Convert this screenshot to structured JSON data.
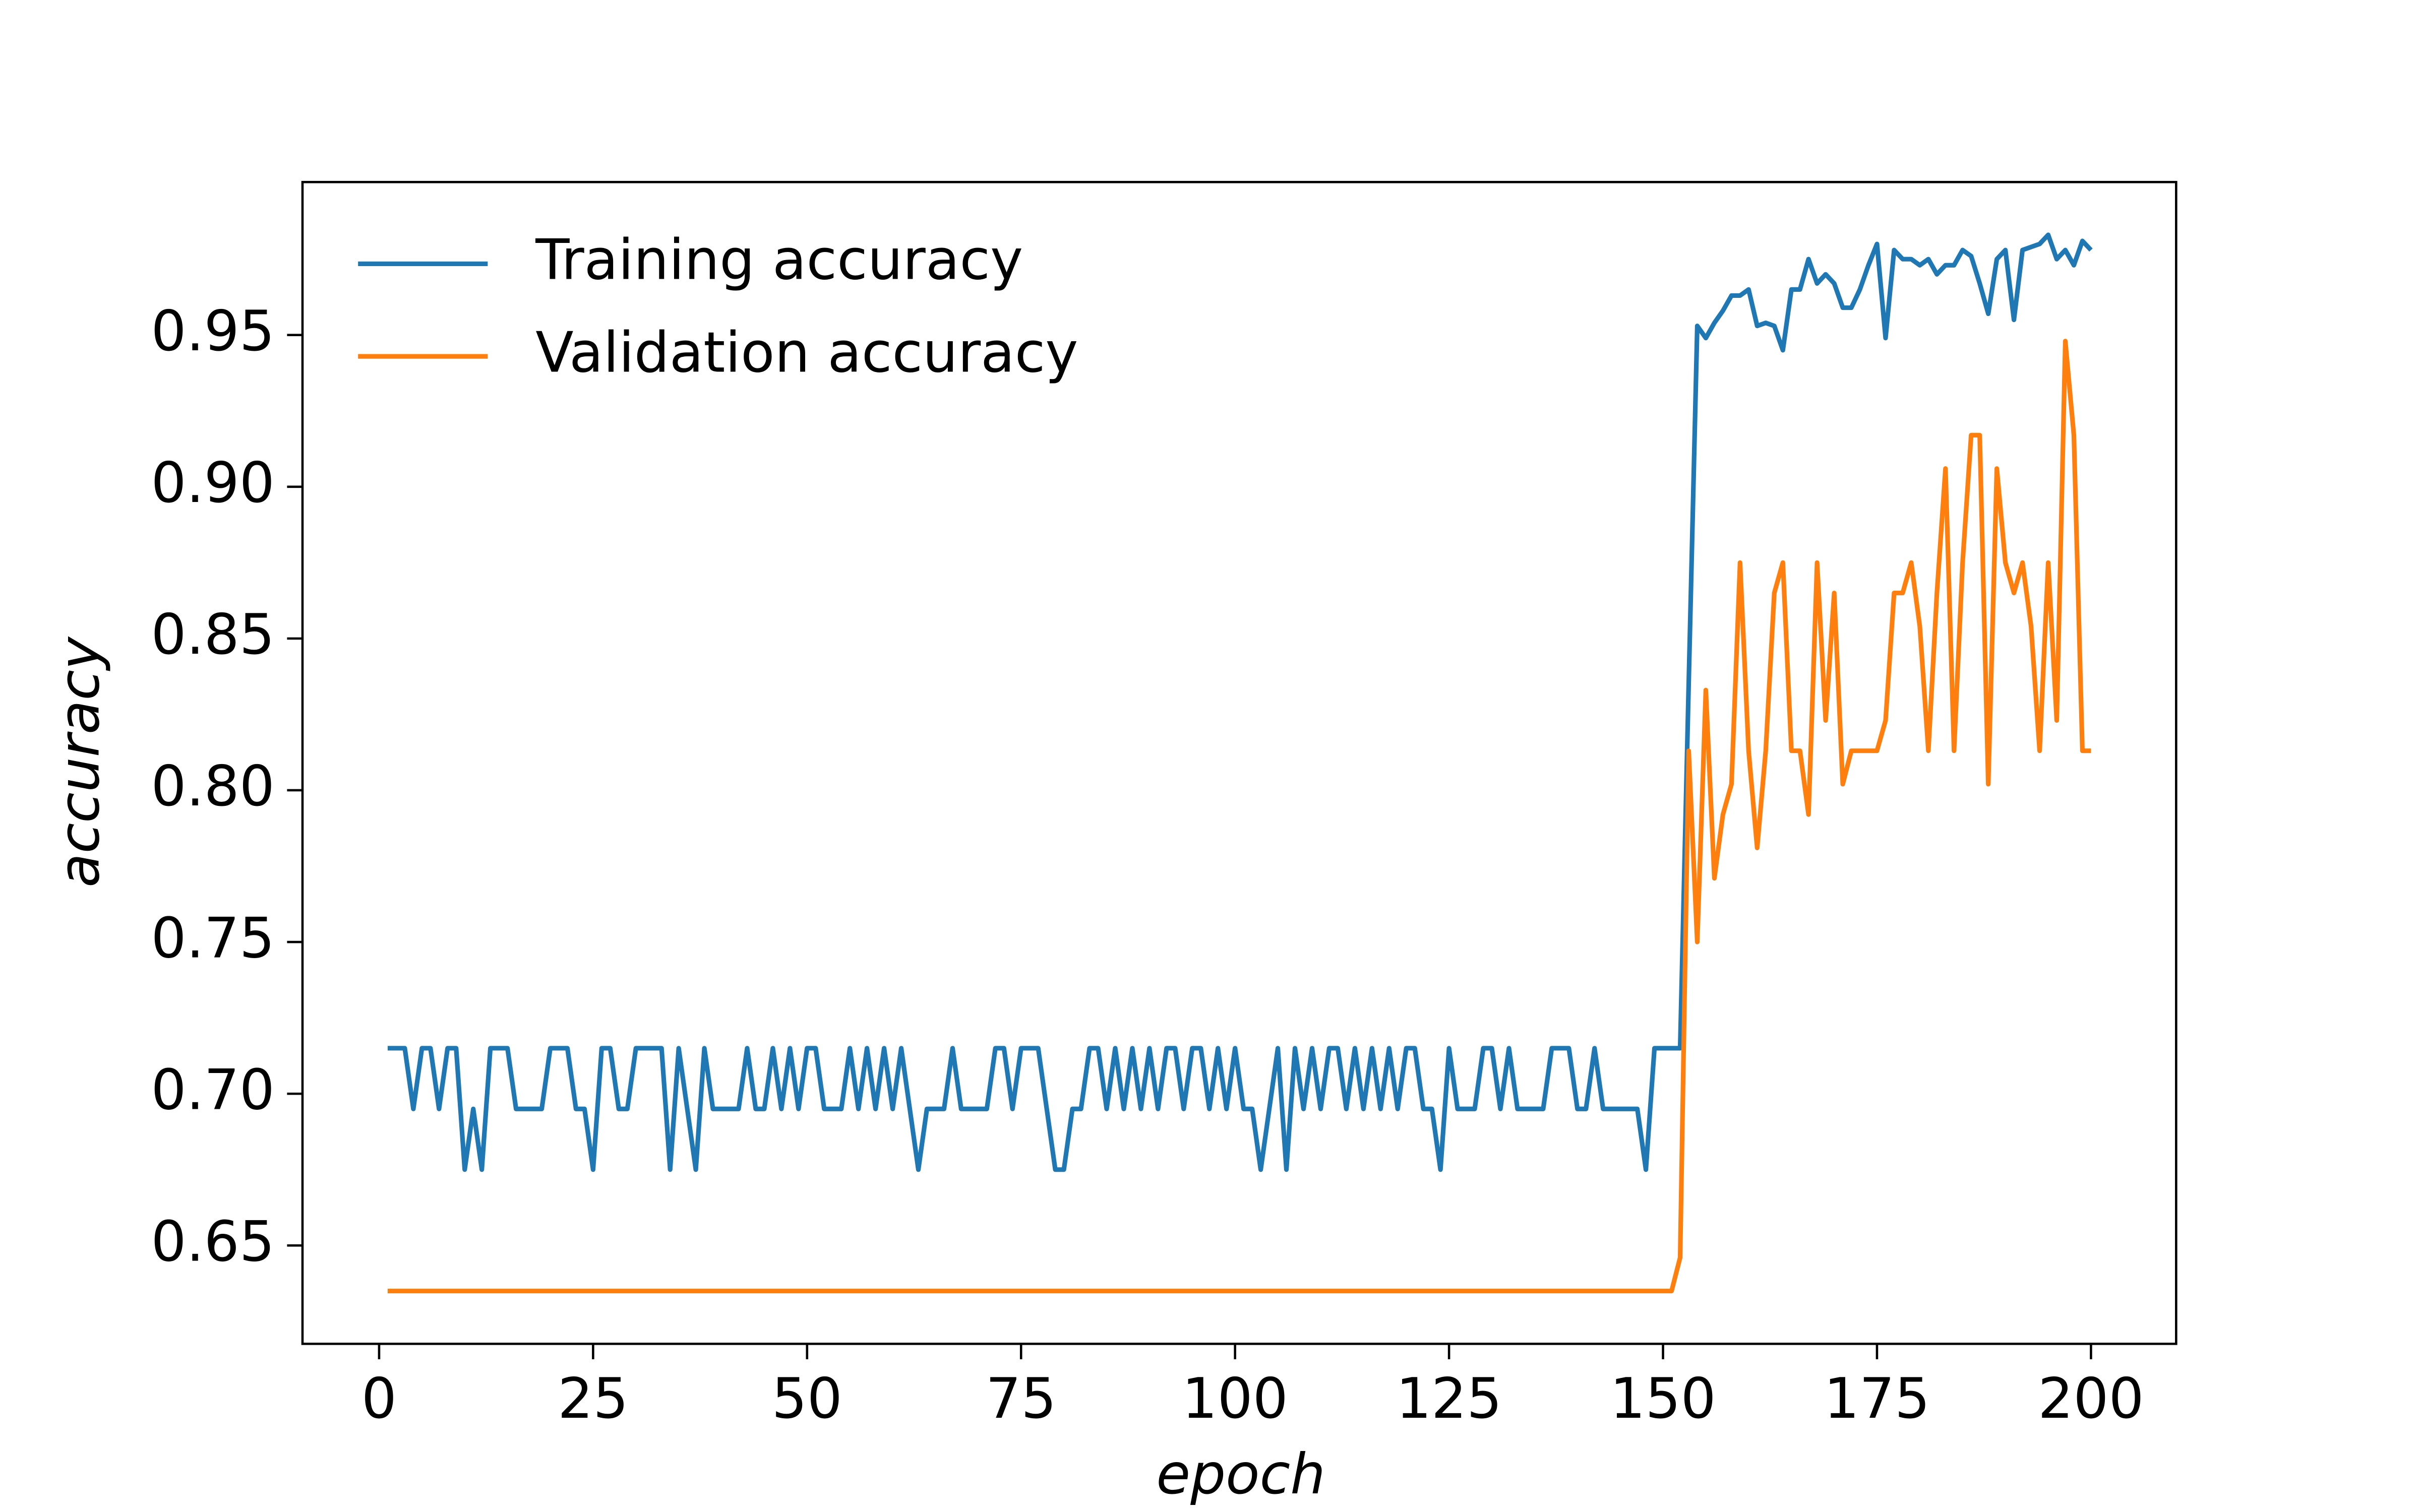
{
  "chart_data": {
    "type": "line",
    "x_label": "epoch",
    "y_label": "accuracy",
    "xlim": [
      -8.95,
      209.95
    ],
    "ylim": [
      0.6176,
      1.0004
    ],
    "xticks": [
      0,
      25,
      50,
      75,
      100,
      125,
      150,
      175,
      200
    ],
    "yticks": [
      0.65,
      {
        "value": 0.7,
        "label": "0.70"
      },
      0.75,
      {
        "value": 0.8,
        "label": "0.80"
      },
      0.85,
      {
        "value": 0.9,
        "label": "0.90"
      },
      0.95
    ],
    "legend": "upper left",
    "x": [
      1,
      2,
      3,
      4,
      5,
      6,
      7,
      8,
      9,
      10,
      11,
      12,
      13,
      14,
      15,
      16,
      17,
      18,
      19,
      20,
      21,
      22,
      23,
      24,
      25,
      26,
      27,
      28,
      29,
      30,
      31,
      32,
      33,
      34,
      35,
      36,
      37,
      38,
      39,
      40,
      41,
      42,
      43,
      44,
      45,
      46,
      47,
      48,
      49,
      50,
      51,
      52,
      53,
      54,
      55,
      56,
      57,
      58,
      59,
      60,
      61,
      62,
      63,
      64,
      65,
      66,
      67,
      68,
      69,
      70,
      71,
      72,
      73,
      74,
      75,
      76,
      77,
      78,
      79,
      80,
      81,
      82,
      83,
      84,
      85,
      86,
      87,
      88,
      89,
      90,
      91,
      92,
      93,
      94,
      95,
      96,
      97,
      98,
      99,
      100,
      101,
      102,
      103,
      104,
      105,
      106,
      107,
      108,
      109,
      110,
      111,
      112,
      113,
      114,
      115,
      116,
      117,
      118,
      119,
      120,
      121,
      122,
      123,
      124,
      125,
      126,
      127,
      128,
      129,
      130,
      131,
      132,
      133,
      134,
      135,
      136,
      137,
      138,
      139,
      140,
      141,
      142,
      143,
      144,
      145,
      146,
      147,
      148,
      149,
      150,
      151,
      152,
      153,
      154,
      155,
      156,
      157,
      158,
      159,
      160,
      161,
      162,
      163,
      164,
      165,
      166,
      167,
      168,
      169,
      170,
      171,
      172,
      173,
      174,
      175,
      176,
      177,
      178,
      179,
      180,
      181,
      182,
      183,
      184,
      185,
      186,
      187,
      188,
      189,
      190,
      191,
      192,
      193,
      194,
      195,
      196,
      197,
      198,
      199,
      200
    ],
    "series": [
      {
        "name": "Training accuracy",
        "color": "#1f77b4",
        "values": [
          0.715,
          0.715,
          0.715,
          0.695,
          0.715,
          0.715,
          0.695,
          0.715,
          0.715,
          0.675,
          0.695,
          0.675,
          0.715,
          0.715,
          0.715,
          0.695,
          0.695,
          0.695,
          0.695,
          0.715,
          0.715,
          0.715,
          0.695,
          0.695,
          0.675,
          0.715,
          0.715,
          0.695,
          0.695,
          0.715,
          0.715,
          0.715,
          0.715,
          0.675,
          0.715,
          0.695,
          0.675,
          0.715,
          0.695,
          0.695,
          0.695,
          0.695,
          0.715,
          0.695,
          0.695,
          0.715,
          0.695,
          0.715,
          0.695,
          0.715,
          0.715,
          0.695,
          0.695,
          0.695,
          0.715,
          0.695,
          0.715,
          0.695,
          0.715,
          0.695,
          0.715,
          0.695,
          0.675,
          0.695,
          0.695,
          0.695,
          0.715,
          0.695,
          0.695,
          0.695,
          0.695,
          0.715,
          0.715,
          0.695,
          0.715,
          0.715,
          0.715,
          0.695,
          0.675,
          0.675,
          0.695,
          0.695,
          0.715,
          0.715,
          0.695,
          0.715,
          0.695,
          0.715,
          0.695,
          0.715,
          0.695,
          0.715,
          0.715,
          0.695,
          0.715,
          0.715,
          0.695,
          0.715,
          0.695,
          0.715,
          0.695,
          0.695,
          0.675,
          0.695,
          0.715,
          0.675,
          0.715,
          0.695,
          0.715,
          0.695,
          0.715,
          0.715,
          0.695,
          0.715,
          0.695,
          0.715,
          0.695,
          0.715,
          0.695,
          0.715,
          0.715,
          0.695,
          0.695,
          0.675,
          0.715,
          0.695,
          0.695,
          0.695,
          0.715,
          0.715,
          0.695,
          0.715,
          0.695,
          0.695,
          0.695,
          0.695,
          0.715,
          0.715,
          0.715,
          0.695,
          0.695,
          0.715,
          0.695,
          0.695,
          0.695,
          0.695,
          0.695,
          0.675,
          0.715,
          0.715,
          0.715,
          0.715,
          0.835,
          0.953,
          0.949,
          0.954,
          0.958,
          0.963,
          0.963,
          0.965,
          0.953,
          0.954,
          0.953,
          0.945,
          0.965,
          0.965,
          0.975,
          0.967,
          0.97,
          0.967,
          0.959,
          0.959,
          0.965,
          0.973,
          0.98,
          0.949,
          0.978,
          0.975,
          0.975,
          0.973,
          0.975,
          0.97,
          0.973,
          0.973,
          0.978,
          0.976,
          0.967,
          0.957,
          0.975,
          0.978,
          0.955,
          0.978,
          0.979,
          0.98,
          0.983,
          0.975,
          0.978,
          0.973,
          0.981,
          0.978
        ]
      },
      {
        "name": "Validation accuracy",
        "color": "#ff7f0e",
        "values": [
          0.635,
          0.635,
          0.635,
          0.635,
          0.635,
          0.635,
          0.635,
          0.635,
          0.635,
          0.635,
          0.635,
          0.635,
          0.635,
          0.635,
          0.635,
          0.635,
          0.635,
          0.635,
          0.635,
          0.635,
          0.635,
          0.635,
          0.635,
          0.635,
          0.635,
          0.635,
          0.635,
          0.635,
          0.635,
          0.635,
          0.635,
          0.635,
          0.635,
          0.635,
          0.635,
          0.635,
          0.635,
          0.635,
          0.635,
          0.635,
          0.635,
          0.635,
          0.635,
          0.635,
          0.635,
          0.635,
          0.635,
          0.635,
          0.635,
          0.635,
          0.635,
          0.635,
          0.635,
          0.635,
          0.635,
          0.635,
          0.635,
          0.635,
          0.635,
          0.635,
          0.635,
          0.635,
          0.635,
          0.635,
          0.635,
          0.635,
          0.635,
          0.635,
          0.635,
          0.635,
          0.635,
          0.635,
          0.635,
          0.635,
          0.635,
          0.635,
          0.635,
          0.635,
          0.635,
          0.635,
          0.635,
          0.635,
          0.635,
          0.635,
          0.635,
          0.635,
          0.635,
          0.635,
          0.635,
          0.635,
          0.635,
          0.635,
          0.635,
          0.635,
          0.635,
          0.635,
          0.635,
          0.635,
          0.635,
          0.635,
          0.635,
          0.635,
          0.635,
          0.635,
          0.635,
          0.635,
          0.635,
          0.635,
          0.635,
          0.635,
          0.635,
          0.635,
          0.635,
          0.635,
          0.635,
          0.635,
          0.635,
          0.635,
          0.635,
          0.635,
          0.635,
          0.635,
          0.635,
          0.635,
          0.635,
          0.635,
          0.635,
          0.635,
          0.635,
          0.635,
          0.635,
          0.635,
          0.635,
          0.635,
          0.635,
          0.635,
          0.635,
          0.635,
          0.635,
          0.635,
          0.635,
          0.635,
          0.635,
          0.635,
          0.635,
          0.635,
          0.635,
          0.635,
          0.635,
          0.635,
          0.635,
          0.646,
          0.813,
          0.75,
          0.833,
          0.771,
          0.792,
          0.802,
          0.875,
          0.813,
          0.781,
          0.813,
          0.865,
          0.875,
          0.813,
          0.813,
          0.792,
          0.875,
          0.823,
          0.865,
          0.802,
          0.813,
          0.813,
          0.813,
          0.813,
          0.823,
          0.865,
          0.865,
          0.875,
          0.854,
          0.813,
          0.865,
          0.906,
          0.813,
          0.875,
          0.917,
          0.917,
          0.802,
          0.906,
          0.875,
          0.865,
          0.875,
          0.854,
          0.813,
          0.875,
          0.823,
          0.948,
          0.917,
          0.813,
          0.813
        ]
      }
    ]
  }
}
